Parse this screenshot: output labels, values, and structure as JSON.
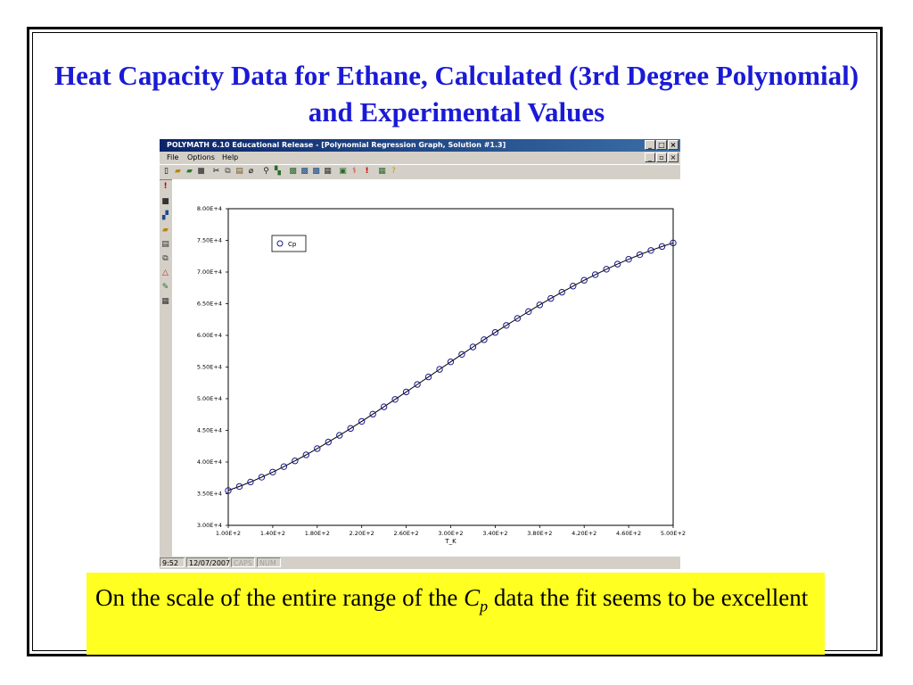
{
  "slide": {
    "title": "Heat Capacity Data for Ethane, Calculated (3rd Degree Polynomial) and Experimental Values",
    "caption_pre": "On the scale of the entire range of the ",
    "caption_var": "C",
    "caption_sub": "p",
    "caption_post": " data the fit seems to be excellent"
  },
  "app": {
    "window_title": "POLYMATH 6.10 Educational Release - [Polynomial Regression Graph, Solution #1.3]",
    "menu": [
      "File",
      "Options",
      "Help"
    ],
    "status": {
      "time": "9:52",
      "date": "12/07/2007",
      "caps": "CAPS",
      "num": "NUM"
    }
  },
  "chart_data": {
    "type": "scatter",
    "title": "",
    "xlabel": "T_K",
    "ylabel": "",
    "xlim": [
      100,
      500
    ],
    "ylim": [
      30000,
      80000
    ],
    "x_ticks": [
      100,
      140,
      180,
      220,
      260,
      300,
      340,
      380,
      420,
      460,
      500
    ],
    "x_tick_labels": [
      "1.00E+2",
      "1.40E+2",
      "1.80E+2",
      "2.20E+2",
      "2.60E+2",
      "3.00E+2",
      "3.40E+2",
      "3.80E+2",
      "4.20E+2",
      "4.60E+2",
      "5.00E+2"
    ],
    "y_ticks": [
      30000,
      35000,
      40000,
      45000,
      50000,
      55000,
      60000,
      65000,
      70000,
      75000,
      80000
    ],
    "y_tick_labels": [
      "3.00E+4",
      "3.50E+4",
      "4.00E+4",
      "4.50E+4",
      "5.00E+4",
      "5.50E+4",
      "6.00E+4",
      "6.50E+4",
      "7.00E+4",
      "7.50E+4",
      "8.00E+4"
    ],
    "legend": "top-left",
    "series": [
      {
        "name": "Cp",
        "marker": "open-circle",
        "color": "#1a1a8c",
        "fit_line_color": "#000000",
        "x": [
          100,
          110,
          120,
          130,
          140,
          150,
          160,
          170,
          180,
          190,
          200,
          210,
          220,
          230,
          240,
          250,
          260,
          270,
          280,
          290,
          300,
          310,
          320,
          330,
          340,
          350,
          360,
          370,
          380,
          390,
          400,
          410,
          420,
          430,
          440,
          450,
          460,
          470,
          480,
          490,
          500
        ],
        "y": [
          35500,
          36140,
          36840,
          37600,
          38410,
          39270,
          40180,
          41130,
          42120,
          43150,
          44210,
          45300,
          46420,
          47560,
          48720,
          49890,
          51070,
          52250,
          53440,
          54630,
          55820,
          57000,
          58170,
          59320,
          60460,
          61580,
          62680,
          63760,
          64810,
          65830,
          66820,
          67780,
          68700,
          69590,
          70440,
          71250,
          72020,
          72740,
          73410,
          74030,
          74600
        ]
      }
    ]
  }
}
